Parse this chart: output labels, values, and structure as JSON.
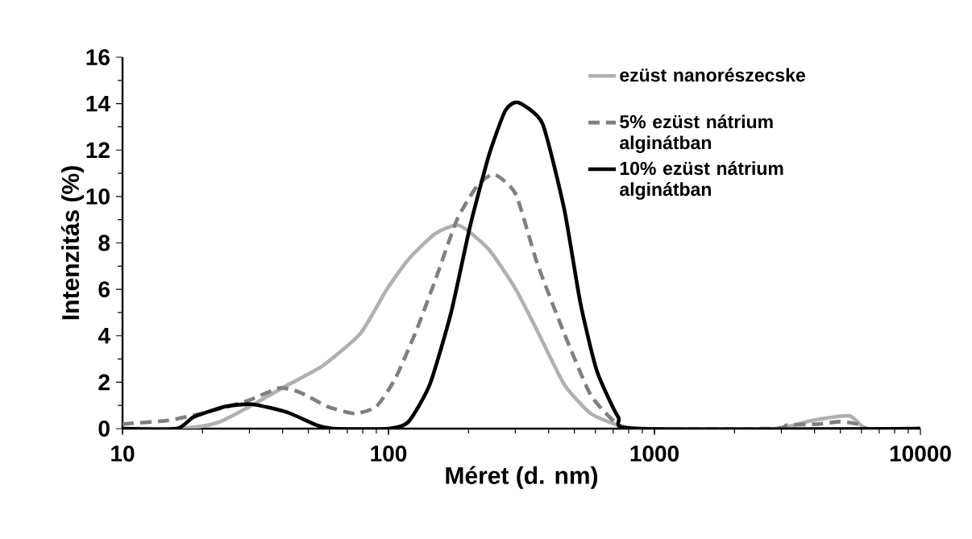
{
  "chart_data": {
    "type": "line",
    "xlabel": "Méret (d. nm)",
    "ylabel": "Intenzitás (%)",
    "log": "x",
    "legend": "top right",
    "xlim": [
      10,
      10000
    ],
    "xticks": [
      10,
      100,
      1000,
      10000
    ],
    "ylim": [
      0,
      16
    ],
    "yticks": [
      0,
      2,
      4,
      6,
      8,
      10,
      12,
      14,
      16
    ],
    "series": [
      {
        "name": "ezüst nanorészecske",
        "color": "#b0b0b0",
        "line_style": "solid",
        "x": [
          10,
          16,
          19.8,
          23.3,
          29.5,
          40.6,
          56.5,
          78.4,
          98.6,
          119,
          150,
          185,
          239,
          301,
          363,
          458,
          576,
          731,
          915,
          2800,
          3900,
          5400,
          6300,
          10000
        ],
        "values": [
          0,
          0,
          0.1,
          0.3,
          0.9,
          1.8,
          2.7,
          4.1,
          6.0,
          7.3,
          8.4,
          8.75,
          7.7,
          6.0,
          4.2,
          1.9,
          0.65,
          0.15,
          0,
          0,
          0.35,
          0.55,
          0,
          0
        ]
      },
      {
        "name": "5% ezüst nátrium alginátban",
        "color": "#7f7f7f",
        "line_style": "dashed",
        "x": [
          10,
          14.7,
          19.8,
          29.5,
          38.9,
          46.7,
          59,
          74.6,
          90,
          106,
          127,
          150,
          181,
          217,
          250,
          301,
          363,
          458,
          576,
          731,
          860,
          2800,
          3160,
          4170,
          4970,
          5800,
          6300,
          10000
        ],
        "values": [
          0.2,
          0.35,
          0.65,
          1.2,
          1.75,
          1.55,
          0.95,
          0.65,
          0.95,
          2.15,
          4.2,
          6.4,
          9.0,
          10.5,
          10.95,
          10.1,
          7.1,
          4.1,
          1.45,
          0.15,
          0,
          0,
          0.15,
          0.2,
          0.3,
          0.2,
          0,
          0
        ]
      },
      {
        "name": "10% ezüst nátrium alginátban",
        "color": "#000000",
        "line_style": "solid",
        "x": [
          10,
          16,
          18.5,
          24.4,
          30.7,
          41.7,
          53.6,
          62,
          100,
          119,
          143,
          172,
          203,
          239,
          275,
          307,
          379,
          458,
          527,
          607,
          731,
          860,
          10000
        ],
        "values": [
          0,
          0,
          0.5,
          0.95,
          1.05,
          0.7,
          0.15,
          0,
          0,
          0.3,
          1.9,
          5.0,
          8.75,
          11.8,
          13.7,
          14.05,
          13.15,
          9.45,
          5.4,
          2.5,
          0.5,
          0,
          0
        ]
      }
    ]
  }
}
